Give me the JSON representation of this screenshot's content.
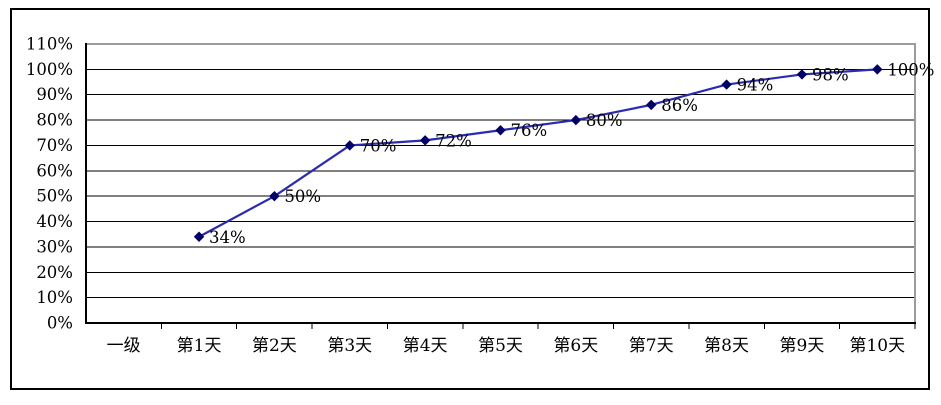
{
  "chart_data": {
    "type": "line",
    "title": "",
    "categories": [
      "一级",
      "第1天",
      "第2天",
      "第3天",
      "第4天",
      "第5天",
      "第6天",
      "第7天",
      "第8天",
      "第9天",
      "第10天"
    ],
    "series": [
      {
        "name": "",
        "values": [
          null,
          34,
          50,
          70,
          72,
          76,
          80,
          86,
          94,
          98,
          100
        ],
        "data_labels": [
          "",
          "34%",
          "50%",
          "70%",
          "72%",
          "76%",
          "80%",
          "86%",
          "94%",
          "98%",
          "100%"
        ]
      }
    ],
    "xlabel": "",
    "ylabel": "",
    "y_axis": {
      "min": 0,
      "max": 110,
      "step": 10,
      "tick_labels": [
        "0%",
        "10%",
        "20%",
        "30%",
        "40%",
        "50%",
        "60%",
        "70%",
        "80%",
        "90%",
        "100%",
        "110%"
      ]
    },
    "grid": "horizontal",
    "legend": "none",
    "marker": "diamond",
    "colors": {
      "line": "#2B2BB0",
      "marker": "#000066",
      "gridline": "#000000",
      "plot_border": "#9C9C9C",
      "axis": "#000000",
      "text": "#000000",
      "background": "#FFFFFF",
      "outer_border": "#000000"
    }
  }
}
